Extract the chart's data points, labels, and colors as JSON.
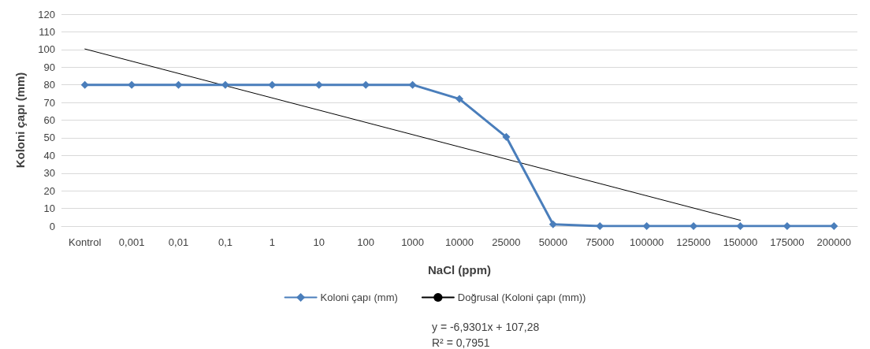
{
  "chart_data": {
    "type": "line",
    "xlabel": "NaCl (ppm)",
    "ylabel": "Koloni çapı (mm)",
    "categories": [
      "Kontrol",
      "0,001",
      "0,01",
      "0,1",
      "1",
      "10",
      "100",
      "1000",
      "10000",
      "25000",
      "50000",
      "75000",
      "100000",
      "125000",
      "150000",
      "175000",
      "200000"
    ],
    "series": [
      {
        "name": "Koloni çapı (mm)",
        "color": "#4a7ebb",
        "values": [
          80,
          80,
          80,
          80,
          80,
          80,
          80,
          80,
          72,
          50.5,
          1,
          0,
          0,
          0,
          0,
          0,
          0
        ],
        "marker": "diamond"
      },
      {
        "name": "Doğrusal (Koloni çapı (mm))",
        "type": "line",
        "color": "#000000",
        "x": [
          "Kontrol",
          "150000"
        ],
        "values": [
          100.3,
          3.3
        ],
        "marker": "none"
      }
    ],
    "ylim": [
      0,
      120
    ],
    "yticks": [
      0,
      10,
      20,
      30,
      40,
      50,
      60,
      70,
      80,
      90,
      100,
      110,
      120
    ],
    "grid": "y",
    "legend": "bottom",
    "line_style": "solid",
    "annotations": [
      "y = -6,9301x + 107,28",
      "R² = 0,7951"
    ]
  }
}
